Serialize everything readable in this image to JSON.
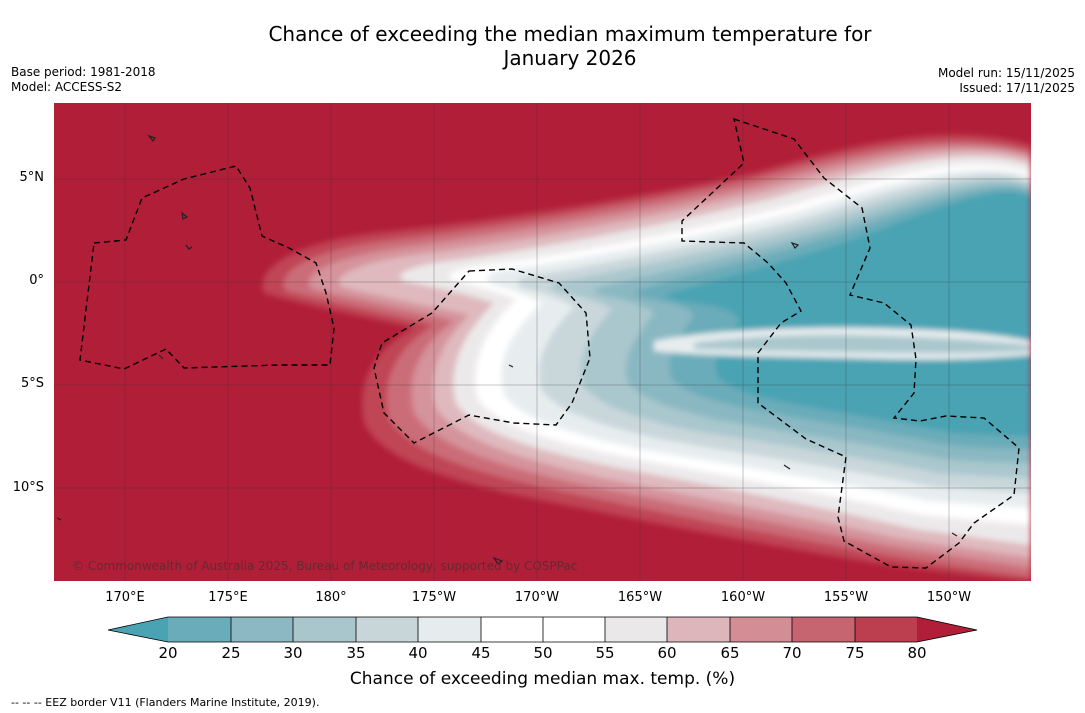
{
  "title": {
    "line1": "Chance of exceeding the median maximum temperature for",
    "line2": "January 2026"
  },
  "meta": {
    "base_period": "Base period: 1981-2018",
    "model": "Model: ACCESS-S2",
    "model_run": "Model run: 15/11/2025",
    "issued": "Issued: 17/11/2025"
  },
  "map": {
    "lat_labels": [
      "5°N",
      "0°",
      "5°S",
      "10°S"
    ],
    "lon_labels": [
      "170°E",
      "175°E",
      "180°",
      "175°W",
      "170°W",
      "165°W",
      "160°W",
      "155°W",
      "150°W"
    ],
    "copyright": "© Commonwealth of Australia 2025, Bureau of Meteorology, supported by COSPPac"
  },
  "colorbar": {
    "ticks": [
      "20",
      "25",
      "30",
      "35",
      "40",
      "45",
      "50",
      "55",
      "60",
      "65",
      "70",
      "75",
      "80"
    ],
    "colors": [
      "#4aa3b3",
      "#6aacb9",
      "#8bb8c2",
      "#a9c6cc",
      "#c8d6da",
      "#e6ecee",
      "#ffffff",
      "#ffffff",
      "#ebe8e9",
      "#ddb6bc",
      "#d28d95",
      "#c66570",
      "#bb3f4e",
      "#b11e38"
    ],
    "label": "Chance of exceeding median max. temp. (%)"
  },
  "footnote": "--  --  -- EEZ border V11 (Flanders Marine Institute, 2019)."
}
